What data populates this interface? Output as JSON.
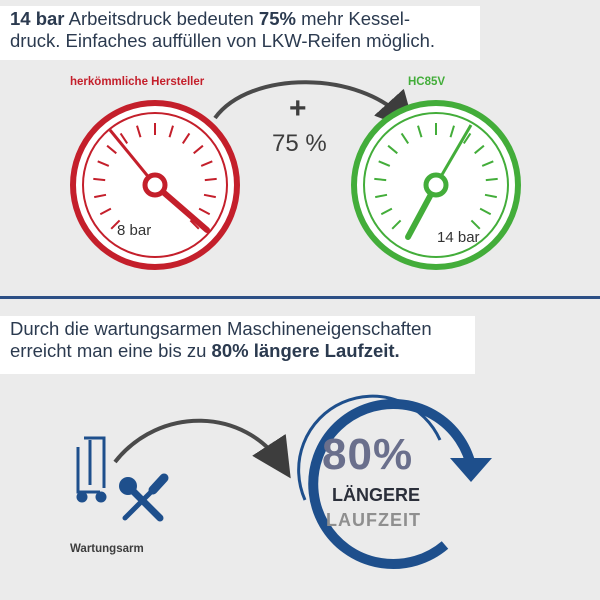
{
  "top_text": {
    "part1_bold": "14 bar",
    "part2": " Arbeitsdruck bedeuten ",
    "part3_bold": "75%",
    "part4": " mehr Kessel-",
    "line2": "druck. Einfaches auffüllen von LKW-Reifen möglich."
  },
  "gauge_left": {
    "label": "herkömmliche Hersteller",
    "value": "8 bar",
    "color": "#c41f2b"
  },
  "gauge_right": {
    "label": "HC85V",
    "value": "14 bar",
    "color": "#43ad3a"
  },
  "increase": {
    "plus": "+",
    "percent": "75 %"
  },
  "mid_text": {
    "line1": "Durch die wartungsarmen Maschineneigenschaften",
    "line2_pre": "erreicht man eine bis zu ",
    "line2_bold": "80% längere Laufzeit."
  },
  "runtime": {
    "percent": "80%",
    "line1": "LÄNGERE",
    "line2": "LAUFZEIT",
    "color": "#1e4f8c"
  },
  "maintenance": {
    "label": "Wartungsarm",
    "icons": [
      "hand-truck-icon",
      "wrench-screwdriver-icon"
    ]
  }
}
